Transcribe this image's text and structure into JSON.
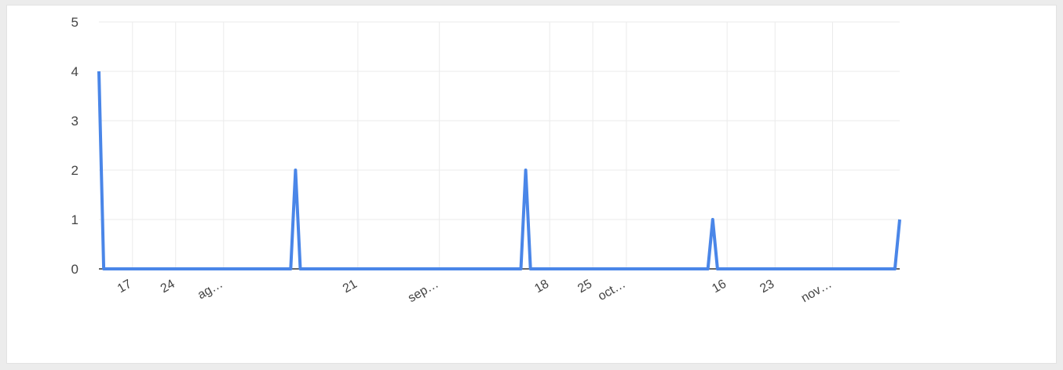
{
  "chart_data": {
    "type": "line",
    "title": "",
    "xlabel": "",
    "ylabel": "",
    "ylim": [
      0,
      5
    ],
    "yticks": [
      0,
      1,
      2,
      3,
      4,
      5
    ],
    "x": [
      1,
      2,
      41,
      42,
      43,
      89,
      90,
      91,
      128,
      129,
      130,
      167,
      168
    ],
    "values": [
      4,
      0,
      0,
      2,
      0,
      0,
      2,
      0,
      0,
      1,
      0,
      0,
      1
    ],
    "xlim": [
      1,
      168
    ],
    "x_tick_labels": [
      {
        "label": "17",
        "x": 8
      },
      {
        "label": "24",
        "x": 17
      },
      {
        "label": "ag…",
        "x": 27
      },
      {
        "label": "21",
        "x": 55
      },
      {
        "label": "sep…",
        "x": 72
      },
      {
        "label": "18",
        "x": 95
      },
      {
        "label": "25",
        "x": 104
      },
      {
        "label": "oct…",
        "x": 111
      },
      {
        "label": "16",
        "x": 132
      },
      {
        "label": "23",
        "x": 142
      },
      {
        "label": "nov…",
        "x": 154
      }
    ],
    "grid": true,
    "legend": "none",
    "line_color": "#4a86e8",
    "grid_color": "#ebebeb",
    "axis_color": "#333333"
  }
}
